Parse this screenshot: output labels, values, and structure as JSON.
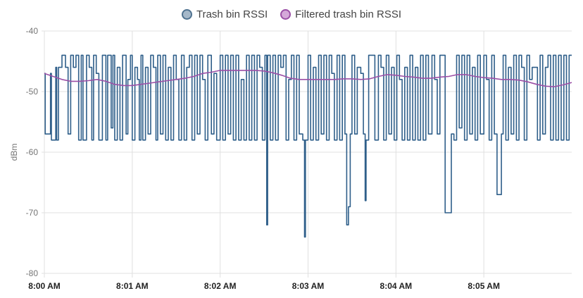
{
  "legend": [
    {
      "label": "Trash bin RSSI",
      "fill": "#a5b8c9",
      "border": "#4f7290"
    },
    {
      "label": "Filtered trash bin RSSI",
      "fill": "#d5a8d9",
      "border": "#9b4fa6"
    }
  ],
  "chart_data": {
    "type": "line",
    "xlabel": "",
    "ylabel": "dBm",
    "ylim": [
      -80,
      -40
    ],
    "yticks": [
      -40,
      -50,
      -60,
      -70,
      -80
    ],
    "xlim_minutes": [
      0,
      6.0
    ],
    "xticks": [
      {
        "label": "8:00 AM",
        "minute": 0
      },
      {
        "label": "8:01 AM",
        "minute": 1
      },
      {
        "label": "8:02 AM",
        "minute": 2
      },
      {
        "label": "8:03 AM",
        "minute": 3
      },
      {
        "label": "8:04 AM",
        "minute": 4
      },
      {
        "label": "8:05 AM",
        "minute": 5
      }
    ],
    "grid": true,
    "legend_position": "top-center",
    "series": [
      {
        "name": "Trash bin RSSI",
        "color": "#2f5f8a",
        "step": true,
        "points": [
          [
            0.0,
            -47
          ],
          [
            0.01,
            -57
          ],
          [
            0.07,
            -47
          ],
          [
            0.08,
            -58
          ],
          [
            0.13,
            -46
          ],
          [
            0.14,
            -58
          ],
          [
            0.16,
            -46
          ],
          [
            0.2,
            -44
          ],
          [
            0.24,
            -46
          ],
          [
            0.27,
            -57
          ],
          [
            0.3,
            -44
          ],
          [
            0.33,
            -46
          ],
          [
            0.36,
            -44
          ],
          [
            0.39,
            -58
          ],
          [
            0.42,
            -44
          ],
          [
            0.44,
            -58
          ],
          [
            0.48,
            -44
          ],
          [
            0.51,
            -46
          ],
          [
            0.54,
            -58
          ],
          [
            0.56,
            -44
          ],
          [
            0.59,
            -47
          ],
          [
            0.62,
            -58
          ],
          [
            0.66,
            -44
          ],
          [
            0.7,
            -58
          ],
          [
            0.72,
            -44
          ],
          [
            0.76,
            -56
          ],
          [
            0.78,
            -44
          ],
          [
            0.8,
            -58
          ],
          [
            0.83,
            -46
          ],
          [
            0.86,
            -58
          ],
          [
            0.89,
            -44
          ],
          [
            0.93,
            -57
          ],
          [
            0.95,
            -48
          ],
          [
            0.98,
            -44
          ],
          [
            1.0,
            -58
          ],
          [
            1.03,
            -46
          ],
          [
            1.06,
            -48
          ],
          [
            1.08,
            -58
          ],
          [
            1.1,
            -44
          ],
          [
            1.12,
            -58
          ],
          [
            1.15,
            -46
          ],
          [
            1.18,
            -57
          ],
          [
            1.21,
            -44
          ],
          [
            1.24,
            -46
          ],
          [
            1.27,
            -58
          ],
          [
            1.29,
            -44
          ],
          [
            1.32,
            -57
          ],
          [
            1.35,
            -44
          ],
          [
            1.38,
            -58
          ],
          [
            1.41,
            -46
          ],
          [
            1.44,
            -58
          ],
          [
            1.47,
            -44
          ],
          [
            1.5,
            -48
          ],
          [
            1.53,
            -58
          ],
          [
            1.56,
            -44
          ],
          [
            1.59,
            -58
          ],
          [
            1.62,
            -46
          ],
          [
            1.65,
            -44
          ],
          [
            1.68,
            -58
          ],
          [
            1.71,
            -44
          ],
          [
            1.74,
            -57
          ],
          [
            1.77,
            -44
          ],
          [
            1.8,
            -48
          ],
          [
            1.83,
            -58
          ],
          [
            1.86,
            -44
          ],
          [
            1.9,
            -57
          ],
          [
            1.93,
            -47
          ],
          [
            1.96,
            -58
          ],
          [
            2.0,
            -44
          ],
          [
            2.03,
            -58
          ],
          [
            2.06,
            -44
          ],
          [
            2.09,
            -57
          ],
          [
            2.12,
            -44
          ],
          [
            2.15,
            -58
          ],
          [
            2.18,
            -44
          ],
          [
            2.21,
            -58
          ],
          [
            2.24,
            -48
          ],
          [
            2.27,
            -58
          ],
          [
            2.3,
            -44
          ],
          [
            2.33,
            -58
          ],
          [
            2.36,
            -44
          ],
          [
            2.39,
            -58
          ],
          [
            2.42,
            -44
          ],
          [
            2.45,
            -46
          ],
          [
            2.48,
            -58
          ],
          [
            2.51,
            -44
          ],
          [
            2.53,
            -72
          ],
          [
            2.54,
            -44
          ],
          [
            2.57,
            -58
          ],
          [
            2.6,
            -44
          ],
          [
            2.63,
            -58
          ],
          [
            2.66,
            -44
          ],
          [
            2.69,
            -46
          ],
          [
            2.72,
            -44
          ],
          [
            2.75,
            -58
          ],
          [
            2.78,
            -48
          ],
          [
            2.81,
            -44
          ],
          [
            2.84,
            -58
          ],
          [
            2.87,
            -44
          ],
          [
            2.9,
            -57
          ],
          [
            2.94,
            -58
          ],
          [
            2.96,
            -74
          ],
          [
            2.97,
            -58
          ],
          [
            3.0,
            -44
          ],
          [
            3.03,
            -58
          ],
          [
            3.06,
            -46
          ],
          [
            3.09,
            -58
          ],
          [
            3.12,
            -44
          ],
          [
            3.15,
            -57
          ],
          [
            3.18,
            -44
          ],
          [
            3.21,
            -58
          ],
          [
            3.24,
            -44
          ],
          [
            3.27,
            -47
          ],
          [
            3.3,
            -58
          ],
          [
            3.33,
            -44
          ],
          [
            3.36,
            -58
          ],
          [
            3.39,
            -44
          ],
          [
            3.42,
            -57
          ],
          [
            3.44,
            -72
          ],
          [
            3.46,
            -69
          ],
          [
            3.48,
            -57
          ],
          [
            3.5,
            -44
          ],
          [
            3.53,
            -57
          ],
          [
            3.56,
            -46
          ],
          [
            3.6,
            -47
          ],
          [
            3.63,
            -57
          ],
          [
            3.65,
            -68
          ],
          [
            3.66,
            -58
          ],
          [
            3.69,
            -44
          ],
          [
            3.73,
            -44
          ],
          [
            3.76,
            -58
          ],
          [
            3.8,
            -44
          ],
          [
            3.83,
            -46
          ],
          [
            3.86,
            -58
          ],
          [
            3.89,
            -44
          ],
          [
            3.92,
            -57
          ],
          [
            3.95,
            -46
          ],
          [
            3.98,
            -58
          ],
          [
            4.01,
            -44
          ],
          [
            4.04,
            -48
          ],
          [
            4.07,
            -58
          ],
          [
            4.1,
            -46
          ],
          [
            4.13,
            -58
          ],
          [
            4.16,
            -44
          ],
          [
            4.19,
            -58
          ],
          [
            4.22,
            -46
          ],
          [
            4.25,
            -58
          ],
          [
            4.28,
            -44
          ],
          [
            4.31,
            -58
          ],
          [
            4.34,
            -44
          ],
          [
            4.37,
            -57
          ],
          [
            4.41,
            -44
          ],
          [
            4.44,
            -48
          ],
          [
            4.47,
            -57
          ],
          [
            4.5,
            -44
          ],
          [
            4.53,
            -44
          ],
          [
            4.56,
            -70
          ],
          [
            4.6,
            -70
          ],
          [
            4.63,
            -57
          ],
          [
            4.66,
            -58
          ],
          [
            4.69,
            -44
          ],
          [
            4.72,
            -56
          ],
          [
            4.75,
            -44
          ],
          [
            4.78,
            -58
          ],
          [
            4.81,
            -44
          ],
          [
            4.84,
            -57
          ],
          [
            4.87,
            -46
          ],
          [
            4.9,
            -58
          ],
          [
            4.93,
            -44
          ],
          [
            4.96,
            -57
          ],
          [
            5.0,
            -44
          ],
          [
            5.03,
            -48
          ],
          [
            5.06,
            -58
          ],
          [
            5.09,
            -44
          ],
          [
            5.12,
            -57
          ],
          [
            5.15,
            -67
          ],
          [
            5.2,
            -57
          ],
          [
            5.22,
            -44
          ],
          [
            5.25,
            -58
          ],
          [
            5.28,
            -46
          ],
          [
            5.31,
            -57
          ],
          [
            5.34,
            -44
          ],
          [
            5.37,
            -58
          ],
          [
            5.4,
            -44
          ],
          [
            5.43,
            -46
          ],
          [
            5.46,
            -58
          ],
          [
            5.49,
            -44
          ],
          [
            5.52,
            -48
          ],
          [
            5.55,
            -46
          ],
          [
            5.58,
            -46
          ],
          [
            5.61,
            -58
          ],
          [
            5.64,
            -44
          ],
          [
            5.67,
            -57
          ],
          [
            5.7,
            -46
          ],
          [
            5.73,
            -44
          ],
          [
            5.76,
            -58
          ],
          [
            5.79,
            -44
          ],
          [
            5.82,
            -58
          ],
          [
            5.85,
            -44
          ],
          [
            5.88,
            -58
          ],
          [
            5.91,
            -44
          ],
          [
            5.94,
            -58
          ],
          [
            5.97,
            -44
          ],
          [
            6.0,
            -44
          ]
        ]
      },
      {
        "name": "Filtered trash bin RSSI",
        "color": "#9b4fa6",
        "step": false,
        "points": [
          [
            0.0,
            -47
          ],
          [
            0.1,
            -47.5
          ],
          [
            0.2,
            -48
          ],
          [
            0.3,
            -48.3
          ],
          [
            0.4,
            -48.3
          ],
          [
            0.5,
            -48.2
          ],
          [
            0.6,
            -48
          ],
          [
            0.7,
            -48.3
          ],
          [
            0.8,
            -48.8
          ],
          [
            0.9,
            -49
          ],
          [
            1.0,
            -49
          ],
          [
            1.1,
            -48.8
          ],
          [
            1.2,
            -48.6
          ],
          [
            1.3,
            -48.4
          ],
          [
            1.4,
            -48.2
          ],
          [
            1.5,
            -48
          ],
          [
            1.6,
            -47.8
          ],
          [
            1.7,
            -47.5
          ],
          [
            1.8,
            -47
          ],
          [
            1.9,
            -46.8
          ],
          [
            2.0,
            -46.5
          ],
          [
            2.1,
            -46.5
          ],
          [
            2.2,
            -46.5
          ],
          [
            2.3,
            -46.5
          ],
          [
            2.4,
            -46.5
          ],
          [
            2.5,
            -46.6
          ],
          [
            2.6,
            -46.9
          ],
          [
            2.7,
            -47.3
          ],
          [
            2.8,
            -47.8
          ],
          [
            2.9,
            -48
          ],
          [
            3.0,
            -48
          ],
          [
            3.1,
            -48
          ],
          [
            3.2,
            -48
          ],
          [
            3.3,
            -48
          ],
          [
            3.4,
            -47.9
          ],
          [
            3.5,
            -47.9
          ],
          [
            3.6,
            -48
          ],
          [
            3.7,
            -47.9
          ],
          [
            3.8,
            -47.5
          ],
          [
            3.9,
            -47.2
          ],
          [
            4.0,
            -47.3
          ],
          [
            4.1,
            -47.5
          ],
          [
            4.2,
            -47.6
          ],
          [
            4.3,
            -47.8
          ],
          [
            4.4,
            -47.8
          ],
          [
            4.5,
            -47.6
          ],
          [
            4.6,
            -47.5
          ],
          [
            4.7,
            -47.2
          ],
          [
            4.8,
            -47.2
          ],
          [
            4.9,
            -47.5
          ],
          [
            5.0,
            -47.7
          ],
          [
            5.1,
            -47.8
          ],
          [
            5.2,
            -48
          ],
          [
            5.3,
            -48
          ],
          [
            5.4,
            -48.1
          ],
          [
            5.5,
            -48.4
          ],
          [
            5.6,
            -48.8
          ],
          [
            5.7,
            -49.1
          ],
          [
            5.8,
            -49.2
          ],
          [
            5.9,
            -48.9
          ],
          [
            6.0,
            -48.5
          ]
        ]
      }
    ]
  }
}
